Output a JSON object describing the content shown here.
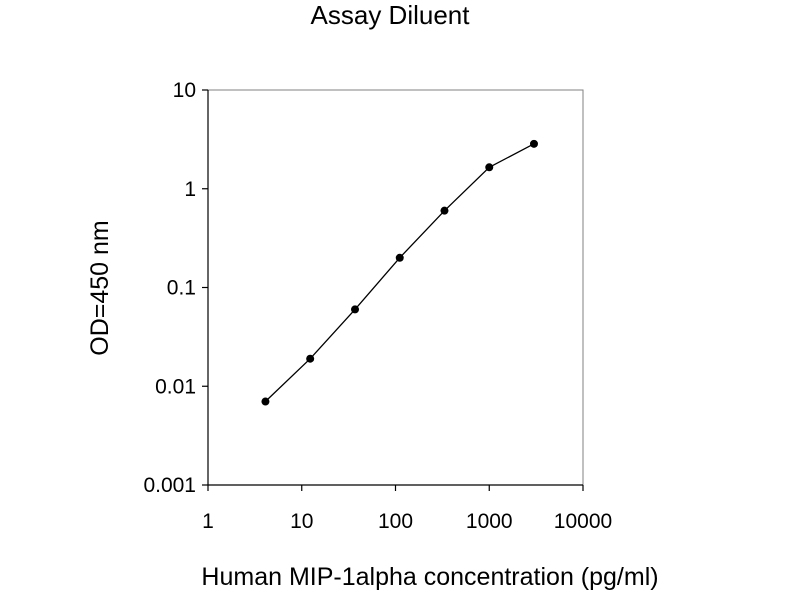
{
  "chart_data": {
    "type": "line",
    "title": "Assay Diluent",
    "xlabel": "Human MIP-1alpha concentration (pg/ml)",
    "ylabel": "OD=450 nm",
    "xscale": "log",
    "yscale": "log",
    "xlim": [
      1,
      10000
    ],
    "ylim": [
      0.001,
      10
    ],
    "x_ticks": [
      "1",
      "10",
      "100",
      "1000",
      "10000"
    ],
    "y_ticks": [
      "0.001",
      "0.01",
      "0.1",
      "1",
      "10"
    ],
    "grid": false,
    "legend": "none",
    "marker": "circle",
    "colors": {
      "line": "#000000",
      "marker": "#000000",
      "axis": "#000000",
      "frame": "#808080"
    },
    "series": [
      {
        "x": [
          4.1,
          12.3,
          37,
          111,
          333,
          1000,
          3000
        ],
        "y": [
          0.007,
          0.019,
          0.06,
          0.2,
          0.6,
          1.65,
          2.85
        ]
      }
    ]
  }
}
